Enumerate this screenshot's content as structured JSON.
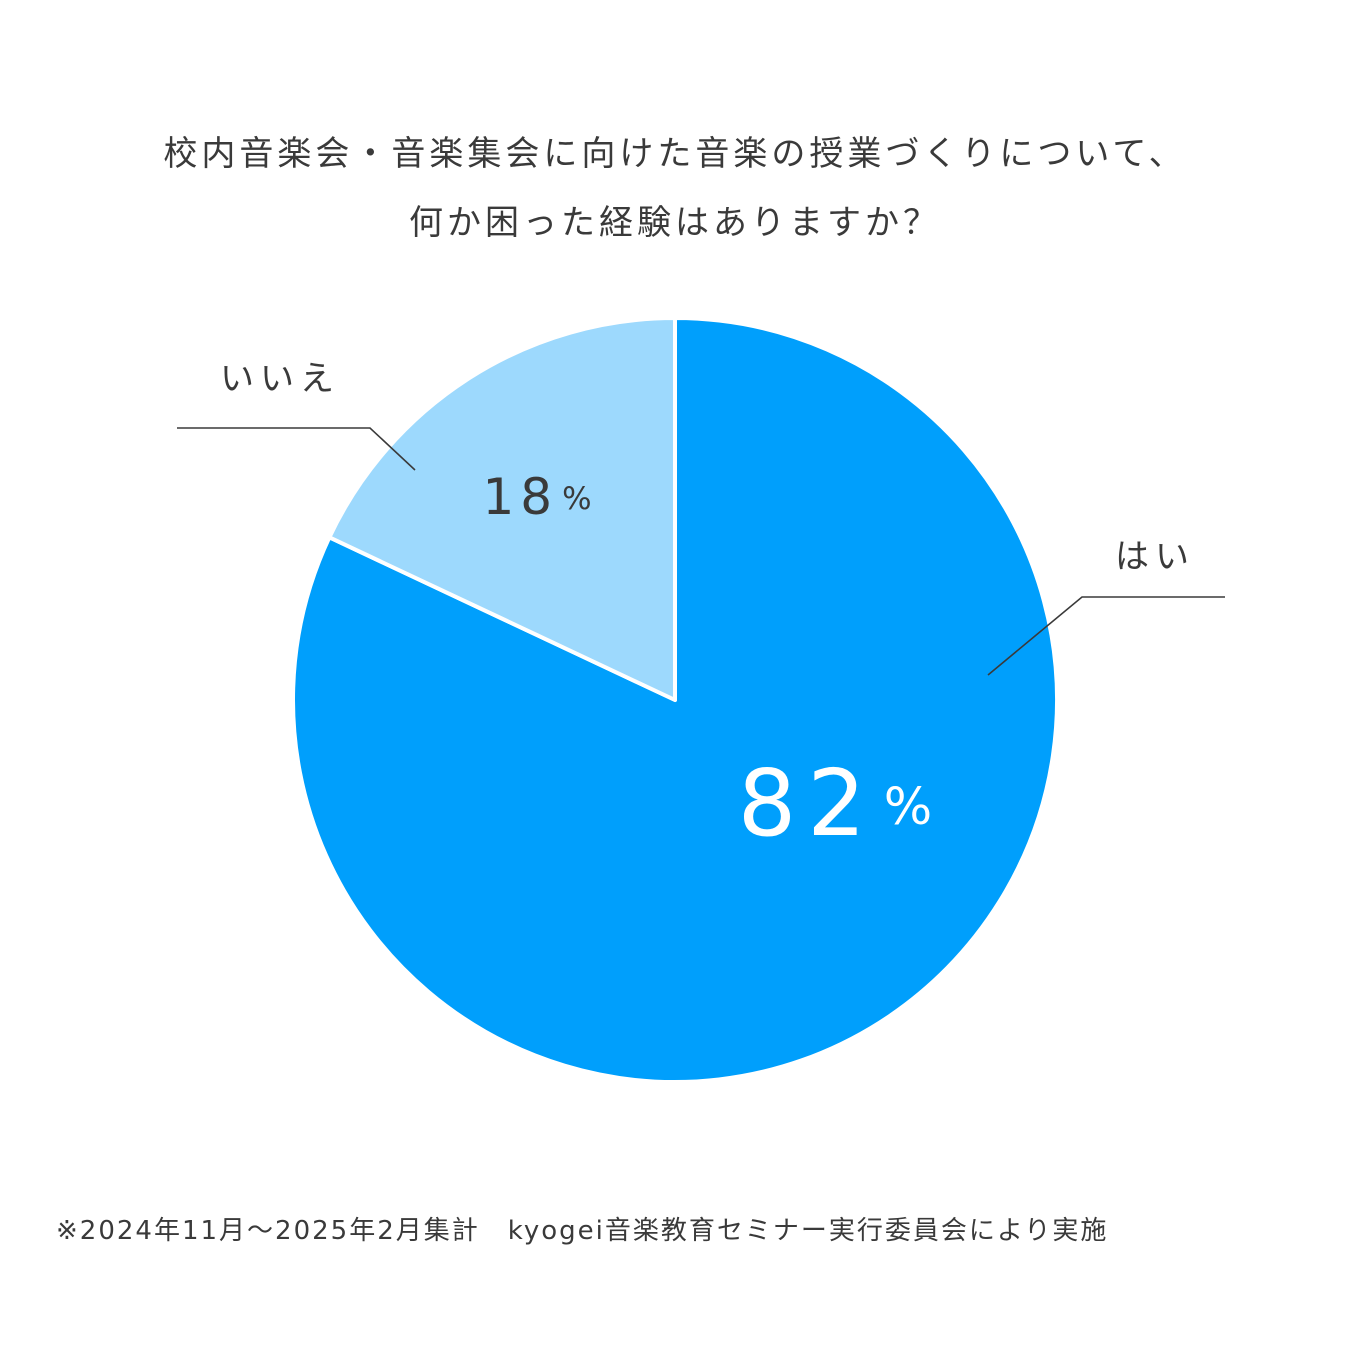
{
  "title_line1": "校内音楽会・音楽集会に向けた音楽の授業づくりについて、",
  "title_line2": "何か困った経験はありますか？",
  "footer": "※2024年11月～2025年2月集計　kyogei音楽教育セミナー実行委員会により実施",
  "chart_data": {
    "type": "pie",
    "title": "校内音楽会・音楽集会に向けた音楽の授業づくりについて、何か困った経験はありますか？",
    "slices": [
      {
        "label": "はい",
        "value": 82,
        "value_label": "82%",
        "color": "#009ffc"
      },
      {
        "label": "いいえ",
        "value": 18,
        "value_label": "18%",
        "color": "#9dd9fd"
      }
    ]
  }
}
